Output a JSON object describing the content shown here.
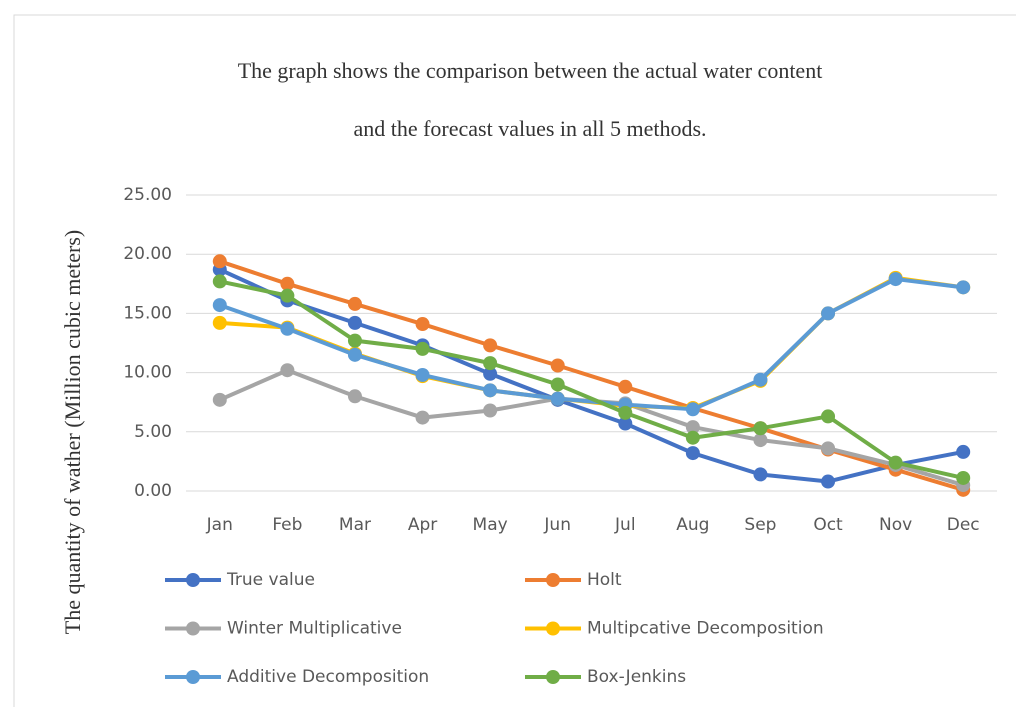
{
  "chart_data": {
    "type": "line",
    "title": [
      "The graph shows the comparison between the actual water content",
      "and the forecast values in all 5 methods."
    ],
    "y_label": "The quantity of wather (Million  cubic meters)",
    "categories": [
      "Jan",
      "Feb",
      "Mar",
      "Apr",
      "May",
      "Jun",
      "Jul",
      "Aug",
      "Sep",
      "Oct",
      "Nov",
      "Dec"
    ],
    "series": [
      {
        "name": "True value",
        "color": "#4472c4",
        "values": [
          18.7,
          16.1,
          14.2,
          12.3,
          9.9,
          7.7,
          5.7,
          3.2,
          1.4,
          0.8,
          2.2,
          3.3
        ]
      },
      {
        "name": "Holt",
        "color": "#ed7d31",
        "values": [
          19.4,
          17.5,
          15.8,
          14.1,
          12.3,
          10.6,
          8.8,
          7.0,
          5.3,
          3.5,
          1.8,
          0.1
        ]
      },
      {
        "name": "Winter Multiplicative",
        "color": "#a5a5a5",
        "values": [
          7.7,
          10.2,
          8.0,
          6.2,
          6.8,
          7.8,
          7.4,
          5.4,
          4.3,
          3.6,
          2.2,
          0.5
        ]
      },
      {
        "name": "Multipcative Decomposition",
        "color": "#ffc000",
        "values": [
          14.2,
          13.8,
          11.6,
          9.7,
          8.5,
          7.8,
          7.2,
          7.0,
          9.3,
          15.0,
          18.0,
          17.2
        ]
      },
      {
        "name": "Additive Decomposition",
        "color": "#5b9bd5",
        "values": [
          15.7,
          13.7,
          11.5,
          9.8,
          8.5,
          7.8,
          7.3,
          6.9,
          9.4,
          15.0,
          17.9,
          17.2
        ]
      },
      {
        "name": "Box-Jenkins",
        "color": "#70ad47",
        "values": [
          17.7,
          16.5,
          12.7,
          12.0,
          10.8,
          9.0,
          6.6,
          4.5,
          5.3,
          6.3,
          2.4,
          1.1
        ]
      }
    ],
    "ylim": [
      0,
      25
    ],
    "yticks": [
      {
        "value": 0,
        "label": "0.00"
      },
      {
        "value": 5,
        "label": "5.00"
      },
      {
        "value": 10,
        "label": "10.00"
      },
      {
        "value": 15,
        "label": "15.00"
      },
      {
        "value": 20,
        "label": "20.00"
      },
      {
        "value": 25,
        "label": "25.00"
      }
    ],
    "grid": true
  }
}
